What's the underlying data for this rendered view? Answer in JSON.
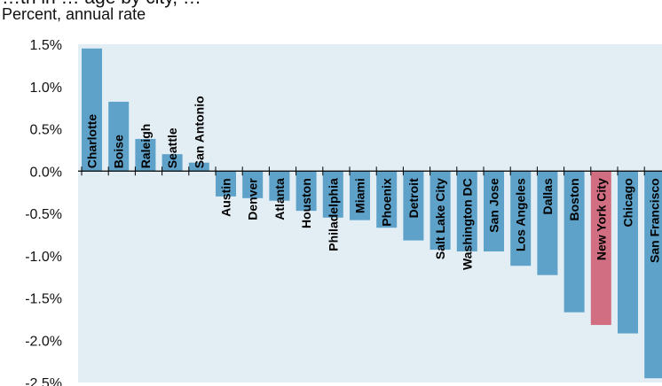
{
  "chart_data": {
    "type": "bar",
    "title": "…th in … age by city, …",
    "subtitle": "Percent, annual rate",
    "xlabel": "",
    "ylabel": "",
    "ylim": [
      -2.5,
      1.5
    ],
    "yticks": [
      "1.5%",
      "1.0%",
      "0.5%",
      "0.0%",
      "-0.5%",
      "-1.0%",
      "-1.5%",
      "-2.0%",
      "-2.5%"
    ],
    "grid": false,
    "legend": "none",
    "categories": [
      "Charlotte",
      "Boise",
      "Raleigh",
      "Seattle",
      "San Antonio",
      "Austin",
      "Denver",
      "Atlanta",
      "Houston",
      "Philadelphia",
      "Miami",
      "Phoenix",
      "Detroit",
      "Salt Lake City",
      "Washington DC",
      "San Jose",
      "Los Angeles",
      "Dallas",
      "Boston",
      "New York City",
      "Chicago",
      "San Francisco"
    ],
    "values": [
      1.45,
      0.82,
      0.38,
      0.2,
      0.1,
      -0.3,
      -0.32,
      -0.35,
      -0.47,
      -0.55,
      -0.58,
      -0.67,
      -0.82,
      -0.93,
      -0.95,
      -0.95,
      -1.12,
      -1.23,
      -1.67,
      -1.82,
      -1.92,
      -2.45
    ],
    "highlight_category": "New York City"
  },
  "colors": {
    "plot_background": "#e2edf4",
    "bar": "#5ea2c9",
    "bar_highlight": "#d26e82",
    "axis": "#000000"
  }
}
